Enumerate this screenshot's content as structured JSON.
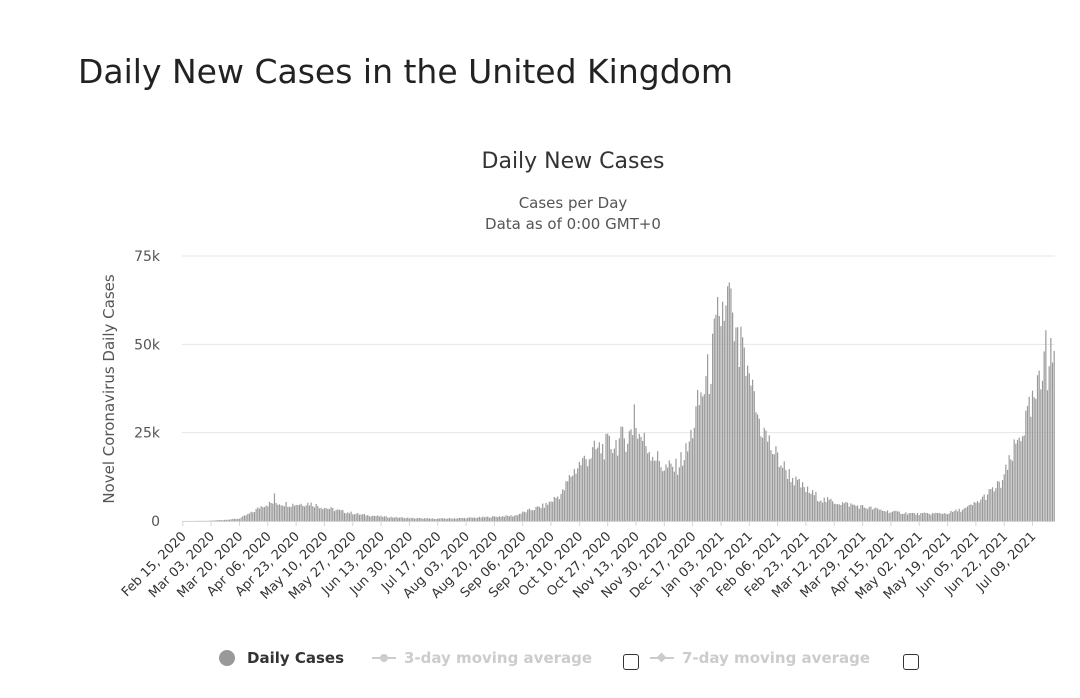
{
  "page": {
    "title": "Daily New Cases in the United Kingdom"
  },
  "chart_data": {
    "type": "bar",
    "title": "Daily New Cases",
    "subtitle": [
      "Cases per Day",
      "Data as of 0:00 GMT+0"
    ],
    "ylabel": "Novel Coronavirus Daily Cases",
    "xlabel": "",
    "ylim": [
      0,
      75000
    ],
    "y_ticks": [
      0,
      25000,
      50000,
      75000
    ],
    "y_tick_labels": [
      "0",
      "25k",
      "50k",
      "75k"
    ],
    "x_start": "2020-02-15",
    "x_end": "2021-07-22",
    "x_tick_labels": [
      "Feb 15, 2020",
      "Mar 03, 2020",
      "Mar 20, 2020",
      "Apr 06, 2020",
      "Apr 23, 2020",
      "May 10, 2020",
      "May 27, 2020",
      "Jun 13, 2020",
      "Jun 30, 2020",
      "Jul 17, 2020",
      "Aug 03, 2020",
      "Aug 20, 2020",
      "Sep 06, 2020",
      "Sep 23, 2020",
      "Oct 10, 2020",
      "Oct 27, 2020",
      "Nov 13, 2020",
      "Nov 30, 2020",
      "Dec 17, 2020",
      "Jan 03, 2021",
      "Jan 20, 2021",
      "Feb 06, 2021",
      "Feb 23, 2021",
      "Mar 12, 2021",
      "Mar 29, 2021",
      "Apr 15, 2021",
      "May 02, 2021",
      "May 19, 2021",
      "Jun 05, 2021",
      "Jun 22, 2021",
      "Jul 09, 2021"
    ],
    "series": [
      {
        "name": "Daily Cases",
        "color": "#999999",
        "points": [
          [
            "2020-02-15",
            0
          ],
          [
            "2020-03-01",
            50
          ],
          [
            "2020-03-10",
            300
          ],
          [
            "2020-03-20",
            700
          ],
          [
            "2020-03-28",
            2500
          ],
          [
            "2020-04-03",
            4500
          ],
          [
            "2020-04-10",
            5200
          ],
          [
            "2020-04-20",
            4700
          ],
          [
            "2020-05-01",
            5000
          ],
          [
            "2020-05-10",
            3800
          ],
          [
            "2020-05-20",
            2800
          ],
          [
            "2020-06-01",
            1800
          ],
          [
            "2020-06-15",
            1200
          ],
          [
            "2020-07-01",
            800
          ],
          [
            "2020-07-15",
            650
          ],
          [
            "2020-08-01",
            800
          ],
          [
            "2020-08-15",
            1100
          ],
          [
            "2020-09-01",
            1500
          ],
          [
            "2020-09-10",
            3000
          ],
          [
            "2020-09-20",
            4500
          ],
          [
            "2020-09-30",
            8000
          ],
          [
            "2020-10-05",
            13000
          ],
          [
            "2020-10-10",
            16000
          ],
          [
            "2020-10-20",
            20000
          ],
          [
            "2020-11-01",
            22000
          ],
          [
            "2020-11-08",
            24000
          ],
          [
            "2020-11-13",
            26000
          ],
          [
            "2020-11-20",
            21000
          ],
          [
            "2020-11-30",
            15000
          ],
          [
            "2020-12-07",
            15000
          ],
          [
            "2020-12-14",
            20000
          ],
          [
            "2020-12-20",
            32000
          ],
          [
            "2020-12-27",
            42000
          ],
          [
            "2021-01-01",
            55000
          ],
          [
            "2021-01-04",
            60000
          ],
          [
            "2021-01-08",
            62000
          ],
          [
            "2021-01-12",
            50000
          ],
          [
            "2021-01-20",
            37000
          ],
          [
            "2021-01-27",
            27000
          ],
          [
            "2021-02-03",
            20000
          ],
          [
            "2021-02-10",
            15000
          ],
          [
            "2021-02-17",
            11000
          ],
          [
            "2021-02-24",
            8500
          ],
          [
            "2021-03-05",
            6000
          ],
          [
            "2021-03-15",
            5200
          ],
          [
            "2021-03-29",
            4000
          ],
          [
            "2021-04-15",
            2600
          ],
          [
            "2021-05-01",
            2000
          ],
          [
            "2021-05-19",
            2200
          ],
          [
            "2021-05-30",
            3500
          ],
          [
            "2021-06-05",
            5000
          ],
          [
            "2021-06-12",
            7500
          ],
          [
            "2021-06-20",
            10500
          ],
          [
            "2021-06-26",
            17000
          ],
          [
            "2021-07-02",
            25000
          ],
          [
            "2021-07-09",
            32000
          ],
          [
            "2021-07-15",
            40000
          ],
          [
            "2021-07-22",
            48000
          ]
        ],
        "spikes": [
          [
            "2020-04-10",
            7800
          ],
          [
            "2020-11-12",
            33000
          ],
          [
            "2020-12-29",
            53000
          ],
          [
            "2021-01-02",
            58000
          ],
          [
            "2021-01-06",
            61000
          ],
          [
            "2021-01-08",
            67500
          ],
          [
            "2021-01-10",
            59000
          ],
          [
            "2021-01-15",
            55000
          ],
          [
            "2021-01-16",
            52000
          ],
          [
            "2021-01-22",
            40000
          ],
          [
            "2021-07-16",
            48000
          ],
          [
            "2021-07-17",
            54000
          ]
        ]
      },
      {
        "name": "3-day moving average",
        "visible": false,
        "color": "#cccccc"
      },
      {
        "name": "7-day moving average",
        "visible": false,
        "color": "#cccccc"
      }
    ],
    "legend": {
      "position": "bottom"
    },
    "grid": true
  },
  "legend": {
    "items": [
      "Daily Cases",
      "3-day moving average",
      "7-day moving average"
    ]
  }
}
